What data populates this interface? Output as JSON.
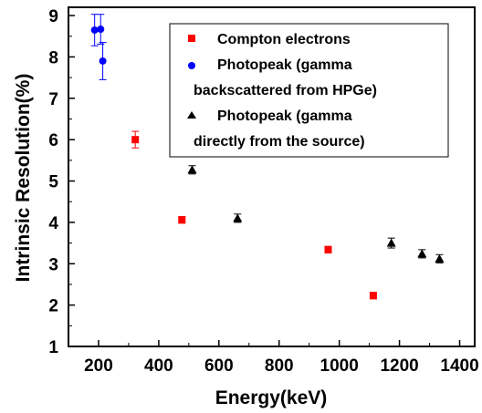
{
  "chart_data": {
    "type": "scatter",
    "xlabel": "Energy(keV)",
    "ylabel": "Intrinsic Resolution(%)",
    "xlim": [
      100,
      1450
    ],
    "ylim": [
      1,
      9.2
    ],
    "x_ticks": [
      200,
      400,
      600,
      800,
      1000,
      1200,
      1400
    ],
    "y_ticks": [
      1,
      2,
      3,
      4,
      5,
      6,
      7,
      8,
      9
    ],
    "legend_position": "top-right",
    "grid": false,
    "series": [
      {
        "name": "Compton electrons",
        "marker": "square",
        "color": "#ff0000",
        "points": [
          {
            "x": 322,
            "y": 6.0,
            "err": 0.2
          },
          {
            "x": 477,
            "y": 4.06,
            "err": 0.08
          },
          {
            "x": 963,
            "y": 3.34,
            "err": 0.08
          },
          {
            "x": 1113,
            "y": 2.23,
            "err": 0.08
          }
        ]
      },
      {
        "name": "Photopeak (gamma backscattered from HPGe)",
        "name_lines": [
          "Photopeak (gamma",
          "backscattered from HPGe)"
        ],
        "marker": "circle",
        "color": "#0000ff",
        "points": [
          {
            "x": 187,
            "y": 8.65,
            "err": 0.38
          },
          {
            "x": 207,
            "y": 8.67,
            "err": 0.36
          },
          {
            "x": 214,
            "y": 7.9,
            "err": 0.45
          }
        ]
      },
      {
        "name": "Photopeak (gamma directly from the source)",
        "name_lines": [
          "Photopeak (gamma",
          "directly from the source)"
        ],
        "marker": "triangle",
        "color": "#000000",
        "points": [
          {
            "x": 511,
            "y": 5.27,
            "err": 0.1
          },
          {
            "x": 662,
            "y": 4.1,
            "err": 0.1
          },
          {
            "x": 1173,
            "y": 3.5,
            "err": 0.12
          },
          {
            "x": 1275,
            "y": 3.24,
            "err": 0.1
          },
          {
            "x": 1333,
            "y": 3.12,
            "err": 0.1
          }
        ]
      }
    ]
  }
}
